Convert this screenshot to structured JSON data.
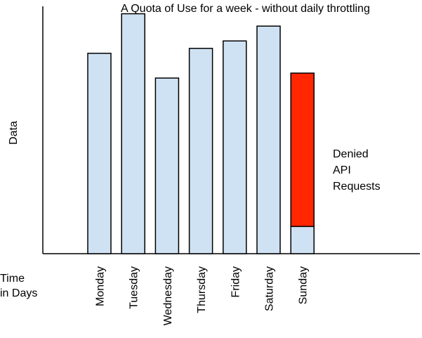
{
  "chart_data": {
    "type": "bar",
    "title": "A Quota of Use for a week - without daily throttling",
    "ylabel": "Data",
    "xlabel": [
      "Time",
      "in Days"
    ],
    "categories": [
      "Monday",
      "Tuesday",
      "Wednesday",
      "Thursday",
      "Friday",
      "Saturday",
      "Sunday"
    ],
    "series": [
      {
        "values": [
          0.81,
          0.97,
          0.71,
          0.83,
          0.86,
          0.92,
          0.11
        ],
        "color": "#cfe2f3"
      },
      {
        "values": [
          0,
          0,
          0,
          0,
          0,
          0,
          0.62
        ],
        "color": "#ff2600"
      }
    ],
    "annotation": [
      "Denied",
      "API",
      "Requests"
    ],
    "ylim": [
      0,
      1
    ],
    "grid": false,
    "legend": "none"
  }
}
